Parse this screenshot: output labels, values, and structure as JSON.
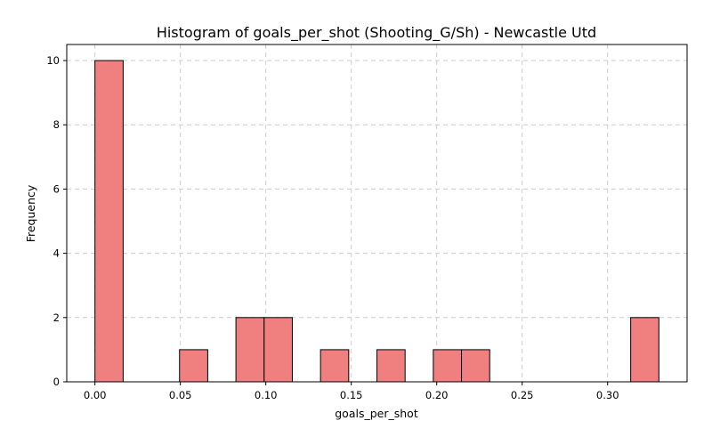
{
  "chart_data": {
    "type": "bar",
    "title": "Histogram of goals_per_shot (Shooting_G/Sh) - Newcastle Utd",
    "xlabel": "goals_per_shot",
    "ylabel": "Frequency",
    "xlim": [
      -0.0165,
      0.3465
    ],
    "ylim": [
      0,
      10.5
    ],
    "xticks": [
      0.0,
      0.05,
      0.1,
      0.15,
      0.2,
      0.25,
      0.3
    ],
    "xtick_labels": [
      "0.00",
      "0.05",
      "0.10",
      "0.15",
      "0.20",
      "0.25",
      "0.30"
    ],
    "yticks": [
      0,
      2,
      4,
      6,
      8,
      10
    ],
    "ytick_labels": [
      "0",
      "2",
      "4",
      "6",
      "8",
      "10"
    ],
    "grid": true,
    "bar_color": "#f08080",
    "bin_edges": [
      0.0,
      0.0165,
      0.033,
      0.0495,
      0.066,
      0.0825,
      0.099,
      0.1155,
      0.132,
      0.1485,
      0.165,
      0.1815,
      0.198,
      0.2145,
      0.231,
      0.2475,
      0.264,
      0.2805,
      0.297,
      0.3135,
      0.33
    ],
    "counts": [
      10,
      0,
      0,
      1,
      0,
      2,
      2,
      0,
      1,
      0,
      1,
      0,
      1,
      1,
      0,
      0,
      0,
      0,
      0,
      2
    ]
  }
}
